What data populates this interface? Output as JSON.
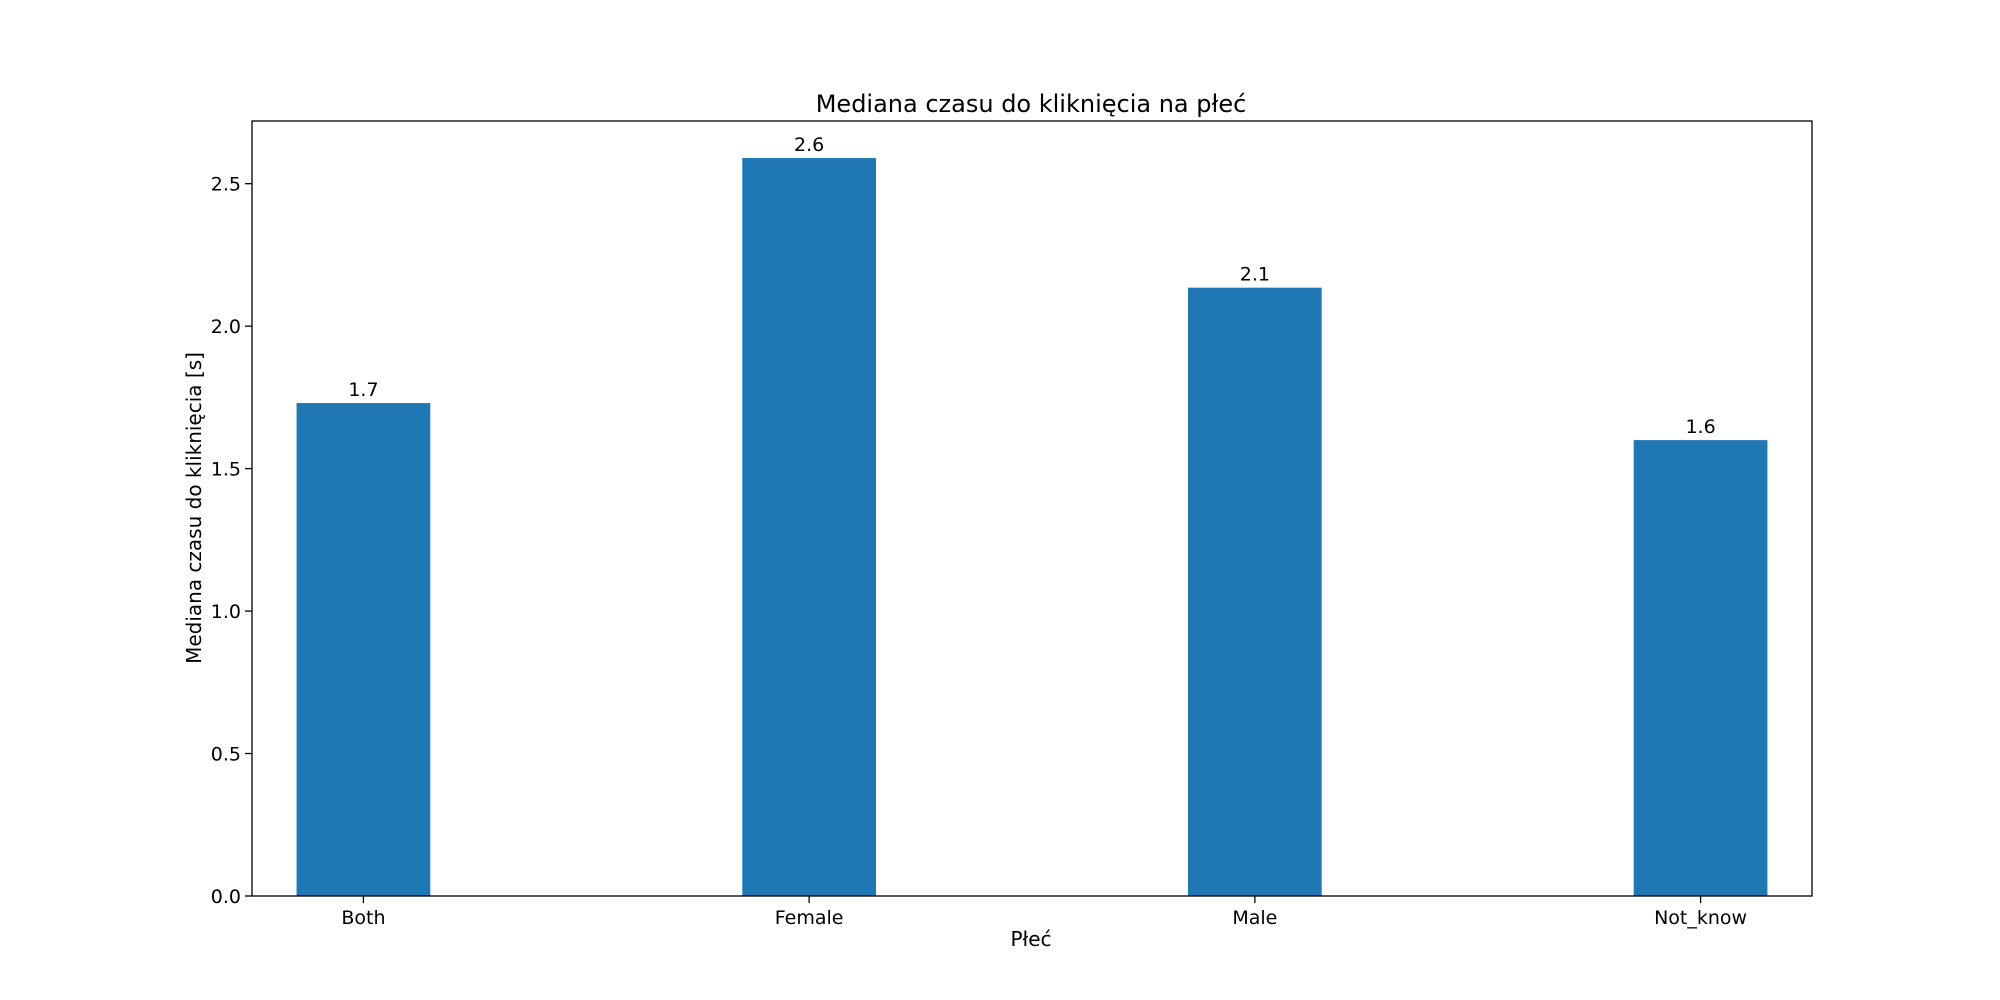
{
  "chart_data": {
    "type": "bar",
    "title": "Mediana czasu do kliknięcia na płeć",
    "xlabel": "Płeć",
    "ylabel": "Mediana czasu do kliknięcia [s]",
    "categories": [
      "Both",
      "Female",
      "Male",
      "Not_know"
    ],
    "values": [
      1.73,
      2.59,
      2.135,
      1.6
    ],
    "data_labels": [
      "1.7",
      "2.6",
      "2.1",
      "1.6"
    ],
    "ylim": [
      0,
      2.72
    ],
    "yticks": [
      0.0,
      0.5,
      1.0,
      1.5,
      2.0,
      2.5
    ],
    "ytick_labels": [
      "0.0",
      "0.5",
      "1.0",
      "1.5",
      "2.0",
      "2.5"
    ],
    "grid": false,
    "bar_color": "#1f77b4"
  }
}
